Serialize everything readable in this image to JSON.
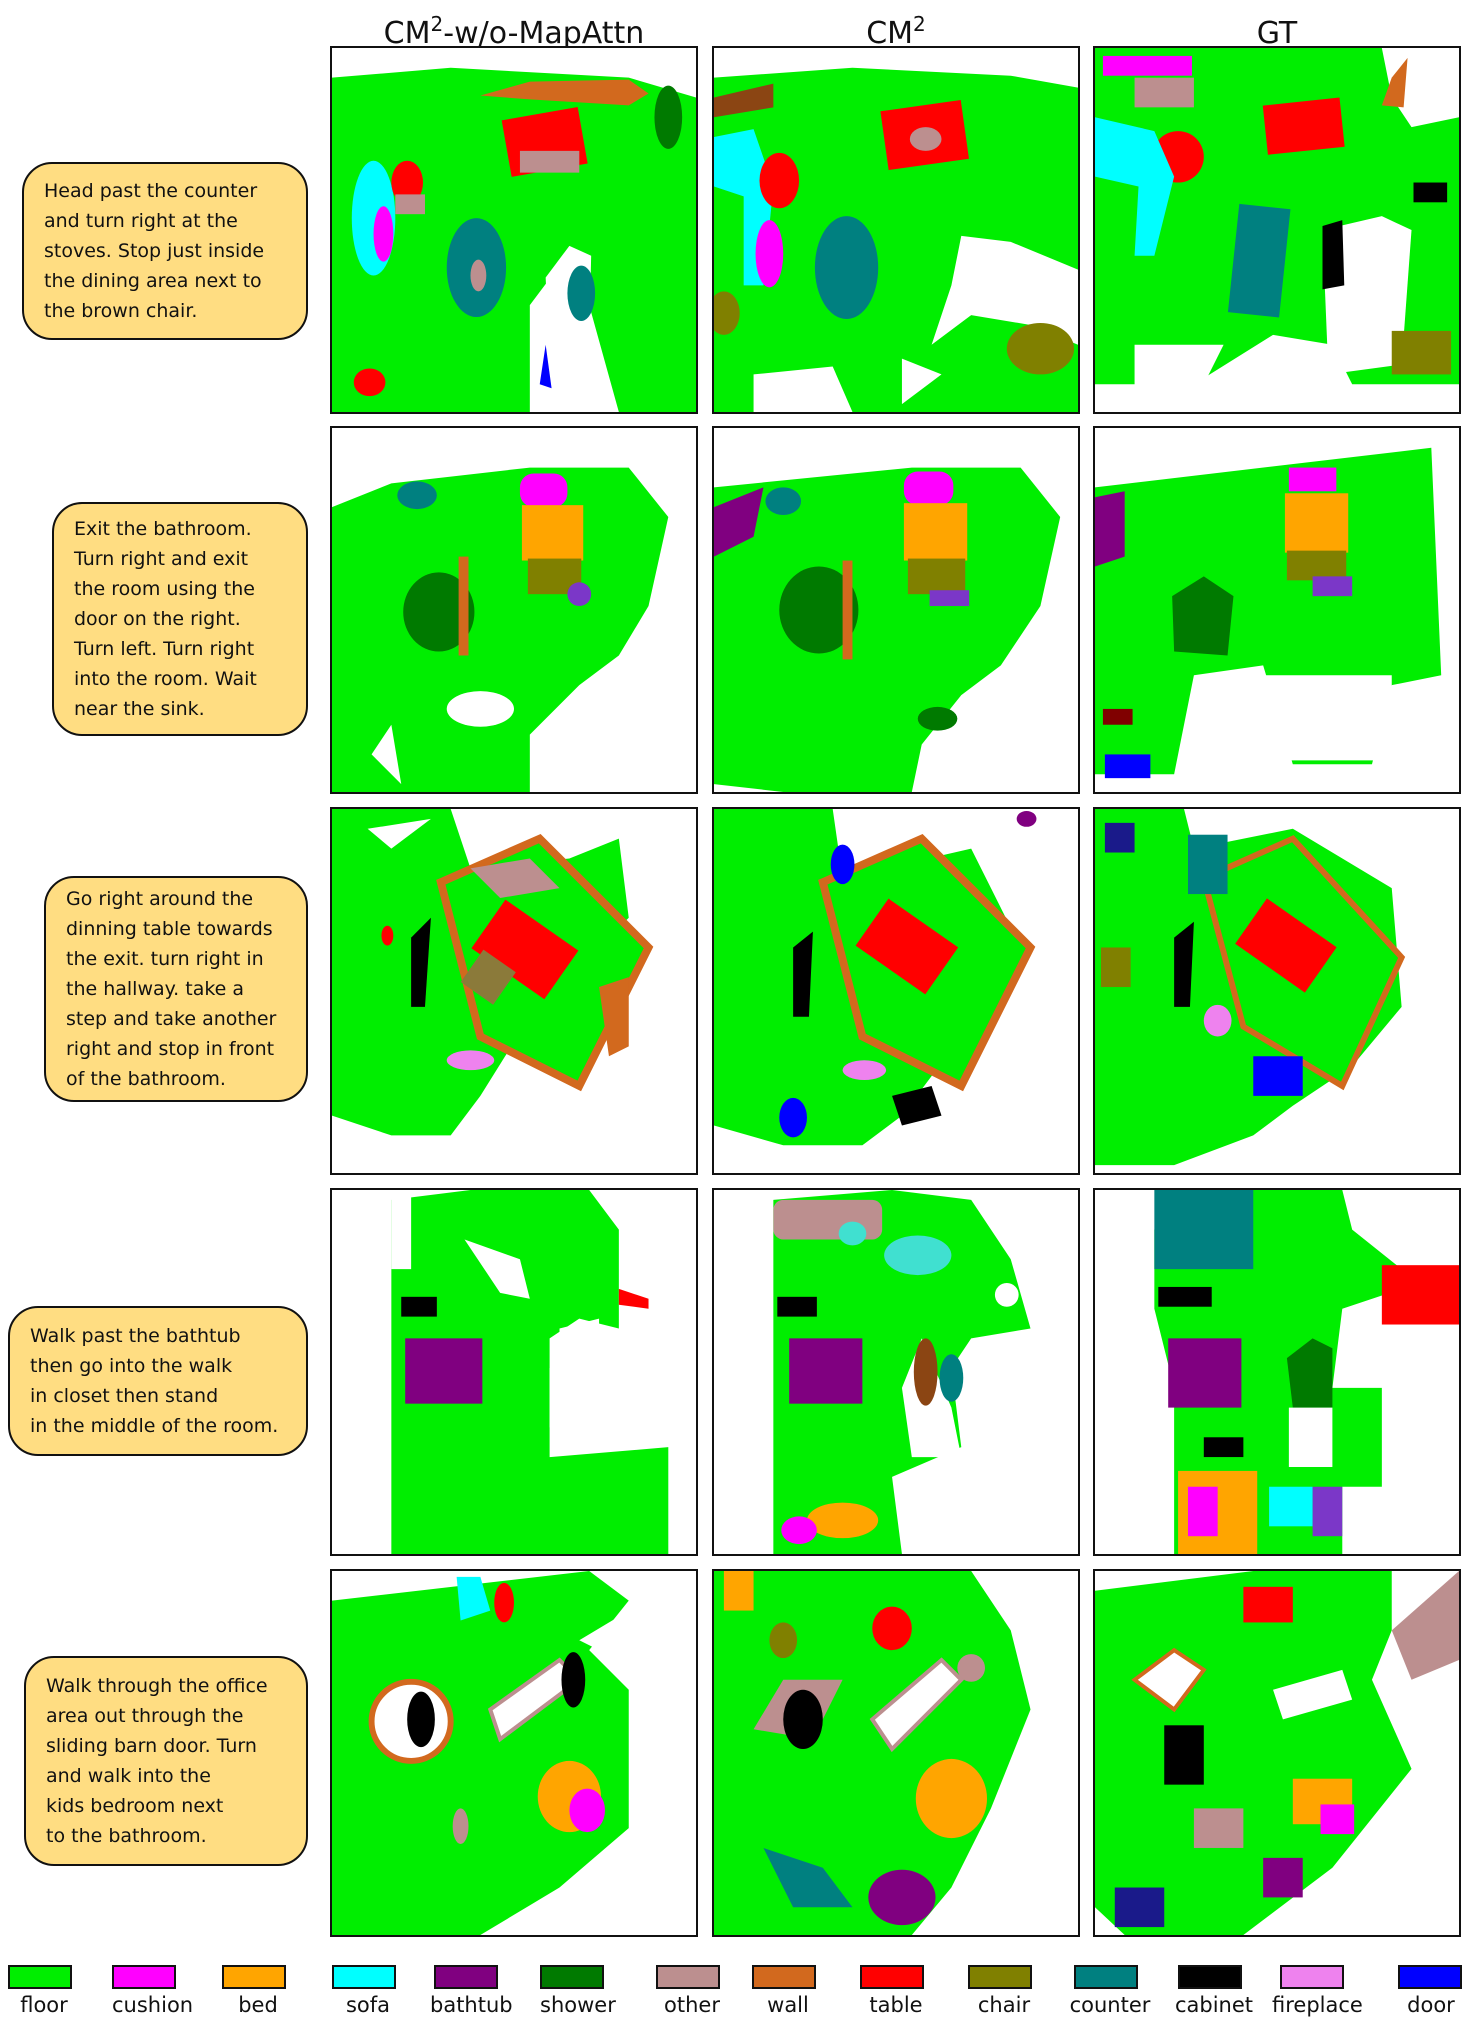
{
  "columns": [
    {
      "base": "CM",
      "sup": "2",
      "suffix": "-w/o-MapAttn"
    },
    {
      "base": "CM",
      "sup": "2",
      "suffix": ""
    },
    {
      "base": "GT",
      "sup": "",
      "suffix": ""
    }
  ],
  "instructions": [
    "Head past the counter\nand turn right at the\nstoves. Stop just inside\nthe dining area next to\nthe brown chair.",
    "Exit the bathroom.\nTurn right and exit\nthe room using the\ndoor on the right.\nTurn left. Turn right\ninto the room. Wait\nnear the sink.",
    "Go right around the\ndinning table towards\nthe exit. turn right in\nthe hallway. take a\nstep and take another\nright and stop in front\nof the bathroom.",
    "Walk past the bathtub\nthen go into the walk\nin closet then stand\nin the middle of the room.",
    "Walk through the office\narea out through the\nsliding barn door. Turn\nand walk into the\nkids bedroom next\nto the bathroom."
  ],
  "legend": [
    {
      "label": "floor",
      "color": "#00ee00"
    },
    {
      "label": "cushion",
      "color": "#ff00ff"
    },
    {
      "label": "bed",
      "color": "#ffa500"
    },
    {
      "label": "sofa",
      "color": "#00ffff"
    },
    {
      "label": "bathtub",
      "color": "#800080"
    },
    {
      "label": "shower",
      "color": "#007a00"
    },
    {
      "label": "other",
      "color": "#bc8f8f"
    },
    {
      "label": "wall",
      "color": "#d2691e"
    },
    {
      "label": "table",
      "color": "#ff0000"
    },
    {
      "label": "chair",
      "color": "#808000"
    },
    {
      "label": "counter",
      "color": "#008080"
    },
    {
      "label": "cabinet",
      "color": "#000000"
    },
    {
      "label": "fireplace",
      "color": "#ee82ee"
    },
    {
      "label": "door",
      "color": "#0000ff"
    }
  ]
}
